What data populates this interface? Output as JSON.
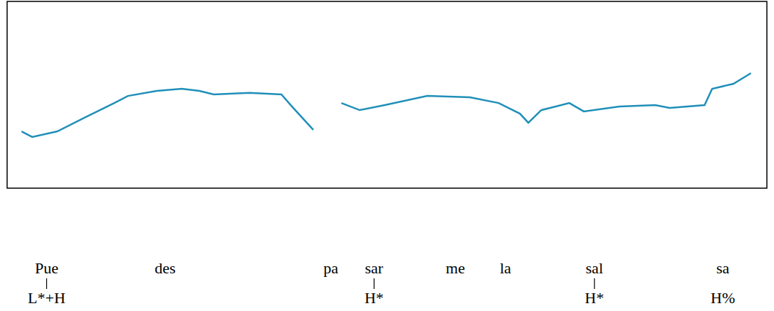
{
  "chart_data": {
    "type": "line",
    "color": "#1f8fb8",
    "tick_labels": false,
    "grid": false,
    "xlim": [
      0,
      100
    ],
    "ylim": [
      0,
      100
    ],
    "x": [
      1.9,
      3.3,
      6.6,
      10.3,
      14.1,
      15.9,
      19.7,
      23.0,
      25.3,
      27.2,
      31.9,
      36.1,
      37.5,
      40.3,
      42.2,
      44.0,
      46.4,
      49.7,
      55.3,
      60.9,
      64.7,
      67.5,
      68.6,
      70.3,
      72.2,
      74.0,
      75.9,
      80.6,
      85.3,
      87.2,
      91.8,
      92.8,
      95.6,
      97.9
    ],
    "values": [
      30.4,
      27.4,
      30.4,
      38.0,
      45.6,
      49.4,
      52.1,
      53.2,
      52.1,
      50.2,
      51.0,
      50.2,
      43.7,
      31.2,
      null,
      45.6,
      41.8,
      44.5,
      49.4,
      48.7,
      45.6,
      39.9,
      35.0,
      41.8,
      43.7,
      45.6,
      41.1,
      43.7,
      44.5,
      43.0,
      44.5,
      53.2,
      55.9,
      61.6
    ],
    "syllables": [
      {
        "text": "Pue",
        "x": 5.2,
        "tone": "L*+H"
      },
      {
        "text": "des",
        "x": 20.8
      },
      {
        "text": "pa",
        "x": 42.6
      },
      {
        "text": "sar",
        "x": 48.3,
        "tone": "H*"
      },
      {
        "text": "me",
        "x": 59.0
      },
      {
        "text": "la",
        "x": 65.6
      },
      {
        "text": "sal",
        "x": 77.3,
        "tone": "H*"
      },
      {
        "text": "sa",
        "x": 94.2
      }
    ],
    "boundary_tone": "H%"
  }
}
